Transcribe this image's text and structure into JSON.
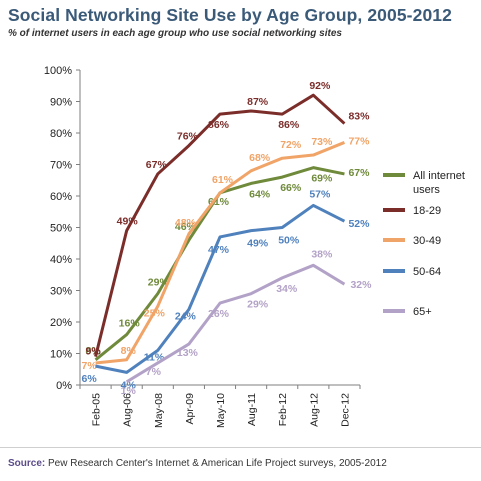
{
  "header": {
    "title": "Social Networking Site Use by Age Group, 2005-2012",
    "subtitle": "% of internet users in each age group who use social networking sites"
  },
  "footer": {
    "source_label": "Source:",
    "source_text": "Pew Research Center's Internet & American Life Project surveys, 2005-2012"
  },
  "chart_data": {
    "type": "line",
    "title": "Social Networking Site Use by Age Group, 2005-2012",
    "subtitle": "% of internet users in each age group who use social networking sites",
    "xlabel": "",
    "ylabel": "",
    "x_ticks": [
      "Feb-05",
      "Aug-06",
      "May-08",
      "Apr-09",
      "May-10",
      "Aug-11",
      "Feb-12",
      "Aug-12",
      "Dec-12"
    ],
    "x_dates": [
      "2005-02",
      "2006-08",
      "2008-05",
      "2009-04",
      "2010-05",
      "2011-08",
      "2012-02",
      "2012-08",
      "2012-12"
    ],
    "y_ticks": [
      "0%",
      "10%",
      "20%",
      "30%",
      "40%",
      "50%",
      "60%",
      "70%",
      "80%",
      "90%",
      "100%"
    ],
    "ylim": [
      0,
      100
    ],
    "y_unit": "%",
    "grid": false,
    "legend_position": "right",
    "series": [
      {
        "name": "All internet users",
        "color": "#6f8a3b",
        "x": [
          "2005-02",
          "2006-08",
          "2008-05",
          "2009-04",
          "2010-05",
          "2011-08",
          "2012-02",
          "2012-08",
          "2012-12"
        ],
        "values": [
          8,
          16,
          29,
          46,
          61,
          64,
          66,
          69,
          67
        ],
        "labels": [
          "8%",
          "16%",
          "29%",
          "46%",
          "61%",
          "64%",
          "66%",
          "69%",
          "67%"
        ]
      },
      {
        "name": "18-29",
        "color": "#7b2d2a",
        "x": [
          "2005-02",
          "2006-08",
          "2008-05",
          "2009-04",
          "2010-05",
          "2011-08",
          "2012-02",
          "2012-08",
          "2012-12"
        ],
        "values": [
          9,
          49,
          67,
          76,
          86,
          87,
          86,
          92,
          83
        ],
        "labels": [
          "9%",
          "49%",
          "67%",
          "76%",
          "86%",
          "87%",
          "86%",
          "92%",
          "83%"
        ]
      },
      {
        "name": "30-49",
        "color": "#f0a468",
        "x": [
          "2005-02",
          "2006-08",
          "2008-05",
          "2009-04",
          "2010-05",
          "2011-08",
          "2012-02",
          "2012-08",
          "2012-12"
        ],
        "values": [
          7,
          8,
          25,
          48,
          61,
          68,
          72,
          73,
          77
        ],
        "labels": [
          "7%",
          "8%",
          "25%",
          "48%",
          "61%",
          "68%",
          "72%",
          "73%",
          "77%"
        ]
      },
      {
        "name": "50-64",
        "color": "#4f81bd",
        "x": [
          "2005-02",
          "2006-08",
          "2008-05",
          "2009-04",
          "2010-05",
          "2011-08",
          "2012-02",
          "2012-08",
          "2012-12"
        ],
        "values": [
          6,
          4,
          11,
          24,
          47,
          49,
          50,
          57,
          52
        ],
        "labels": [
          "6%",
          "4%",
          "11%",
          "24%",
          "47%",
          "49%",
          "50%",
          "57%",
          "52%"
        ]
      },
      {
        "name": "65+",
        "color": "#b3a2c7",
        "x": [
          "2006-08",
          "2008-05",
          "2009-04",
          "2010-05",
          "2011-08",
          "2012-02",
          "2012-08",
          "2012-12"
        ],
        "values": [
          1,
          7,
          13,
          26,
          29,
          34,
          38,
          32
        ],
        "labels": [
          "1%",
          "7%",
          "13%",
          "26%",
          "29%",
          "34%",
          "38%",
          "32%"
        ]
      }
    ],
    "legend": [
      "All internet users",
      "18-29",
      "30-49",
      "50-64",
      "65+"
    ]
  }
}
